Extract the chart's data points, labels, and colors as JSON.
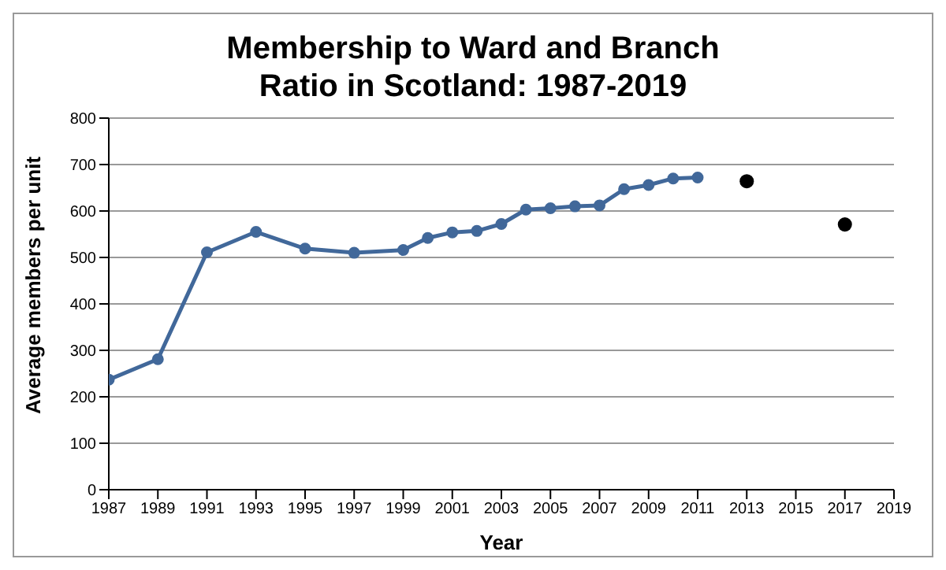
{
  "chart_data": {
    "type": "line",
    "title": "Membership to Ward and Branch Ratio in Scotland: 1987-2019",
    "xlabel": "Year",
    "ylabel": "Average members per unit",
    "series": [
      {
        "color": "#41689a",
        "x": [
          1987,
          1989,
          1991,
          1993,
          1995,
          1997,
          1999,
          2000,
          2001,
          2002,
          2003,
          2004,
          2005,
          2006,
          2007,
          2008,
          2009,
          2010,
          2011
        ],
        "values": [
          237,
          281,
          511,
          555,
          519,
          510,
          516,
          542,
          554,
          557,
          572,
          603,
          606,
          610,
          612,
          647,
          656,
          670,
          672
        ]
      },
      {
        "type": "scatter",
        "color": "#000000",
        "x": [
          2013,
          2017
        ],
        "values": [
          664,
          571
        ]
      }
    ],
    "xlim": [
      1987,
      2019
    ],
    "xticks": [
      1987,
      1989,
      1991,
      1993,
      1995,
      1997,
      1999,
      2001,
      2003,
      2005,
      2007,
      2009,
      2011,
      2013,
      2015,
      2017,
      2019
    ],
    "ylim": [
      0,
      800
    ],
    "yticks": [
      0,
      100,
      200,
      300,
      400,
      500,
      600,
      700,
      800
    ],
    "grid": "y",
    "marker": "circle"
  }
}
